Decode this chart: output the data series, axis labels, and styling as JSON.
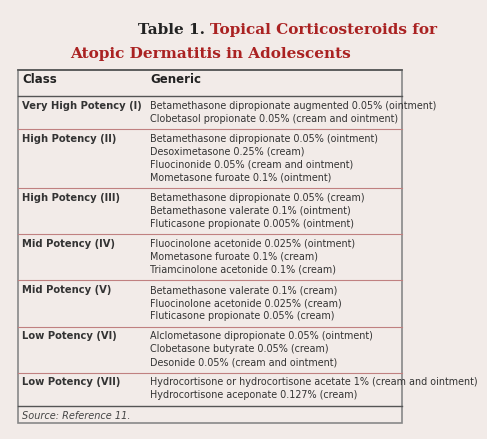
{
  "title_fontsize": 11,
  "bg_color": "#f2ebe8",
  "source_text": "Source: Reference 11.",
  "rows": [
    {
      "class": "Very High Potency (I)",
      "generics": [
        "Betamethasone dipropionate augmented 0.05% (ointment)",
        "Clobetasol propionate 0.05% (cream and ointment)"
      ]
    },
    {
      "class": "High Potency (II)",
      "generics": [
        "Betamethasone dipropionate 0.05% (ointment)",
        "Desoximetasone 0.25% (cream)",
        "Fluocinonide 0.05% (cream and ointment)",
        "Mometasone furoate 0.1% (ointment)"
      ]
    },
    {
      "class": "High Potency (III)",
      "generics": [
        "Betamethasone dipropionate 0.05% (cream)",
        "Betamethasone valerate 0.1% (ointment)",
        "Fluticasone propionate 0.005% (ointment)"
      ]
    },
    {
      "class": "Mid Potency (IV)",
      "generics": [
        "Fluocinolone acetonide 0.025% (ointment)",
        "Mometasone furoate 0.1% (cream)",
        "Triamcinolone acetonide 0.1% (cream)"
      ]
    },
    {
      "class": "Mid Potency (V)",
      "generics": [
        "Betamethasone valerate 0.1% (cream)",
        "Fluocinolone acetonide 0.025% (cream)",
        "Fluticasone propionate 0.05% (cream)"
      ]
    },
    {
      "class": "Low Potency (VI)",
      "generics": [
        "Alclometasone dipropionate 0.05% (ointment)",
        "Clobetasone butyrate 0.05% (cream)",
        "Desonide 0.05% (cream and ointment)"
      ]
    },
    {
      "class": "Low Potency (VII)",
      "generics": [
        "Hydrocortisone or hydrocortisone acetate 1% (cream and ointment)",
        "Hydrocortisone aceponate 0.127% (cream)"
      ]
    }
  ]
}
